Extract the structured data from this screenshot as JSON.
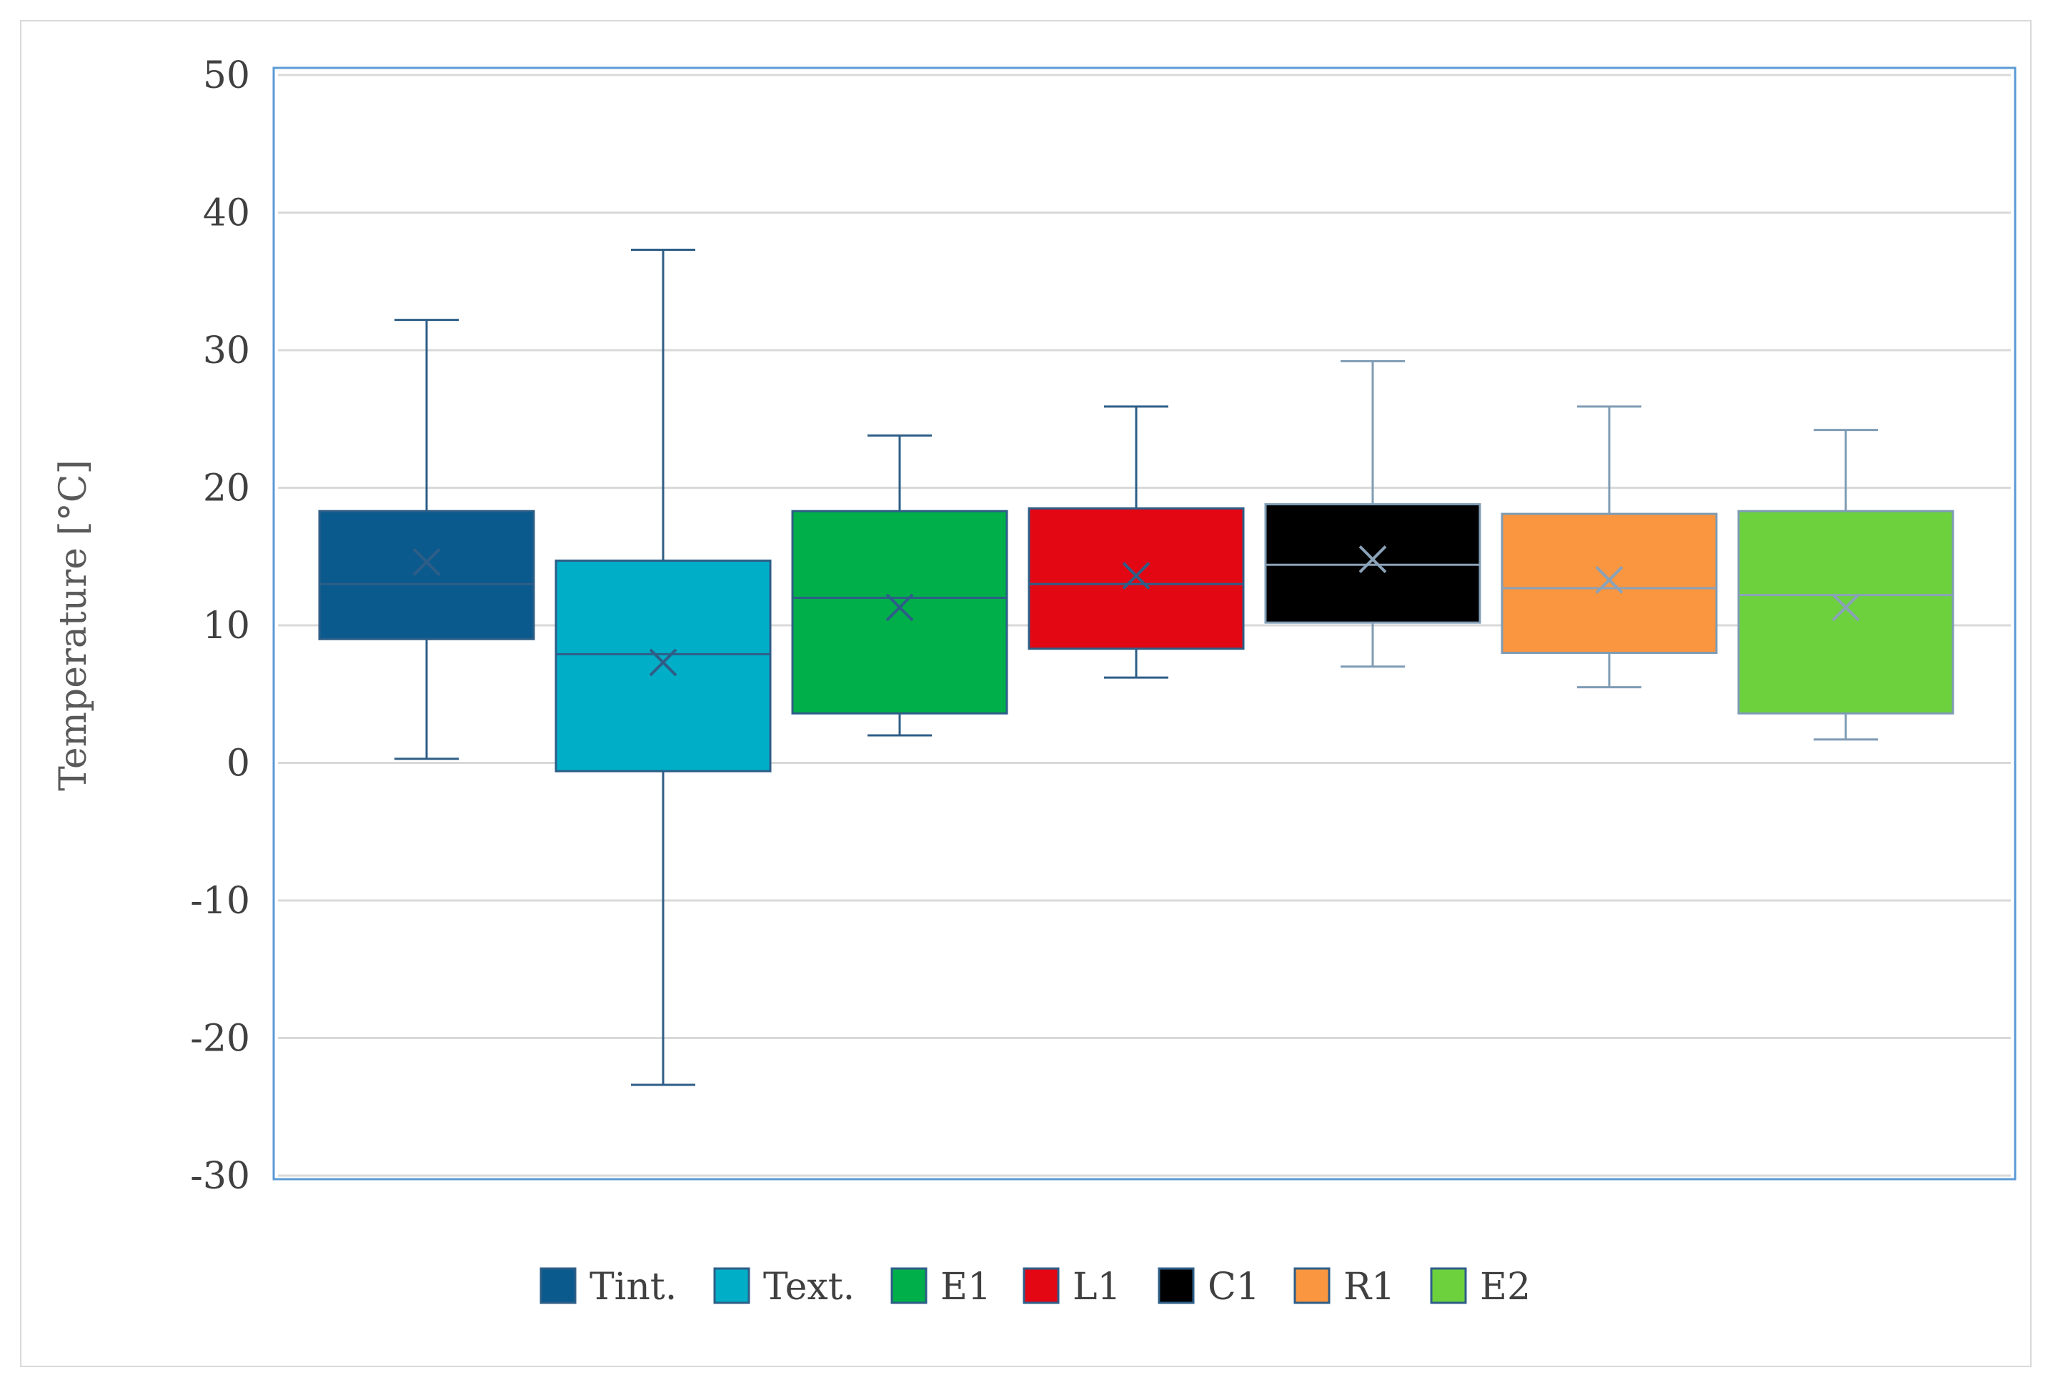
{
  "chart_data": {
    "type": "boxplot",
    "title": "",
    "xlabel": "",
    "ylabel": "Temperature [°C]",
    "ylim": [
      -30,
      50
    ],
    "yticks": [
      50,
      40,
      30,
      20,
      10,
      0,
      -10,
      -20,
      -30
    ],
    "grid": true,
    "legend_position": "bottom",
    "series": [
      {
        "name": "Tint.",
        "color": "#0b5a8d",
        "whisker_min": 0.3,
        "q1": 9.0,
        "median": 13.0,
        "q3": 18.3,
        "whisker_max": 32.2,
        "mean": 14.6
      },
      {
        "name": "Text.",
        "color": "#00aec7",
        "whisker_min": -23.4,
        "q1": -0.6,
        "median": 7.9,
        "q3": 14.7,
        "whisker_max": 37.3,
        "mean": 7.3
      },
      {
        "name": "E1",
        "color": "#00af4a",
        "whisker_min": 2.0,
        "q1": 3.6,
        "median": 12.0,
        "q3": 18.3,
        "whisker_max": 23.8,
        "mean": 11.3
      },
      {
        "name": "L1",
        "color": "#e30613",
        "whisker_min": 6.2,
        "q1": 8.3,
        "median": 13.0,
        "q3": 18.5,
        "whisker_max": 25.9,
        "mean": 13.6
      },
      {
        "name": "C1",
        "color": "#000000",
        "whisker_min": 7.0,
        "q1": 10.2,
        "median": 14.4,
        "q3": 18.8,
        "whisker_max": 29.2,
        "mean": 14.8
      },
      {
        "name": "R1",
        "color": "#f9963f",
        "whisker_min": 5.5,
        "q1": 8.0,
        "median": 12.7,
        "q3": 18.1,
        "whisker_max": 25.9,
        "mean": 13.3
      },
      {
        "name": "E2",
        "color": "#6dd13d",
        "whisker_min": 1.7,
        "q1": 3.6,
        "median": 12.2,
        "q3": 18.3,
        "whisker_max": 24.2,
        "mean": 11.3
      }
    ]
  }
}
